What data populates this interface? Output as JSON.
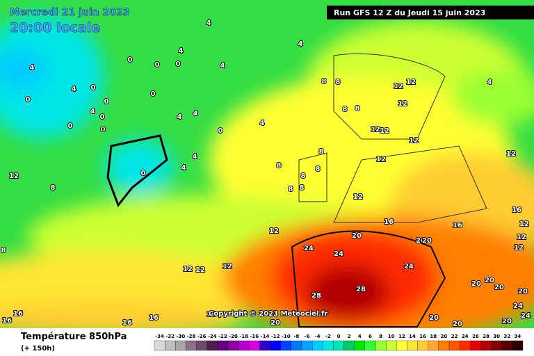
{
  "header": {
    "date": "Mercredi 21 juin 2023",
    "time": "20:00 locale",
    "run": "Run GFS 12 Z du Jeudi 15 juin 2023"
  },
  "copyright": "Copyright © 2023 Meteociel.fr",
  "legend": {
    "title": "Température 850hPa",
    "lead": "(+ 150h)"
  },
  "scale": {
    "labels": [
      -34,
      -32,
      -30,
      -28,
      -26,
      -24,
      -22,
      -20,
      -18,
      -16,
      -14,
      -12,
      -10,
      -8,
      -6,
      -4,
      -2,
      0,
      2,
      4,
      6,
      8,
      10,
      12,
      14,
      16,
      18,
      20,
      22,
      24,
      26,
      28,
      30,
      32,
      34
    ],
    "colors": [
      "#d9d9d9",
      "#bfbfbf",
      "#a6a6a6",
      "#8c6e8c",
      "#6e4a6e",
      "#4d1f4d",
      "#66007f",
      "#8c00a6",
      "#b300cc",
      "#d900e6",
      "#3300cc",
      "#0000ff",
      "#0044ff",
      "#0077ff",
      "#00a6ff",
      "#00ccff",
      "#00e6e6",
      "#00e6b3",
      "#00cc66",
      "#00e600",
      "#33ff33",
      "#99ff33",
      "#ccff33",
      "#ffff33",
      "#ffe633",
      "#ffcc33",
      "#ffa633",
      "#ff8000",
      "#ff5500",
      "#ff2a00",
      "#e60000",
      "#b30000",
      "#800000",
      "#550000",
      "#2a0000"
    ]
  },
  "contour_labels": [
    4,
    4,
    0,
    0,
    4,
    0,
    4,
    4,
    4,
    0,
    0,
    0,
    0,
    4,
    0,
    0,
    0,
    4,
    4,
    0,
    4,
    0,
    4,
    4,
    8,
    8,
    8,
    8,
    8,
    8,
    8,
    8,
    8,
    8,
    8,
    12,
    12,
    12,
    12,
    12,
    12,
    12,
    12,
    12,
    12,
    12,
    12,
    12,
    12,
    8,
    4,
    16,
    16,
    16,
    12,
    12,
    12,
    20,
    20,
    20,
    24,
    24,
    24,
    28,
    28,
    20,
    20,
    20,
    20,
    24,
    24,
    20,
    20,
    20,
    20,
    16,
    16,
    16,
    16,
    16
  ]
}
